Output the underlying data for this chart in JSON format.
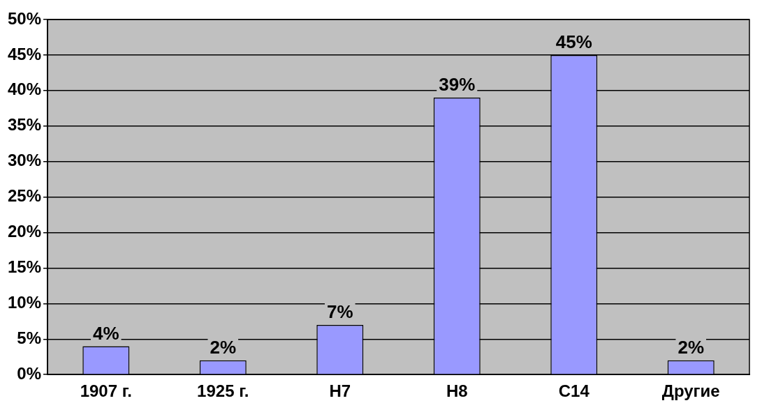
{
  "chart_data": {
    "type": "bar",
    "categories": [
      "1907 г.",
      "1925 г.",
      "Н7",
      "Н8",
      "С14",
      "Другие"
    ],
    "values": [
      4,
      2,
      7,
      39,
      45,
      2
    ],
    "value_labels": [
      "4%",
      "2%",
      "7%",
      "39%",
      "45%",
      "2%"
    ],
    "color": "#9999ff",
    "ylim": [
      0,
      50
    ],
    "yticks": [
      {
        "value": 0,
        "label": "0%"
      },
      {
        "value": 5,
        "label": "5%"
      },
      {
        "value": 10,
        "label": "10%"
      },
      {
        "value": 15,
        "label": "15%"
      },
      {
        "value": 20,
        "label": "20%"
      },
      {
        "value": 25,
        "label": "25%"
      },
      {
        "value": 30,
        "label": "30%"
      },
      {
        "value": 35,
        "label": "35%"
      },
      {
        "value": 40,
        "label": "40%"
      },
      {
        "value": 45,
        "label": "45%"
      },
      {
        "value": 50,
        "label": "50%"
      }
    ],
    "grid": "y"
  }
}
